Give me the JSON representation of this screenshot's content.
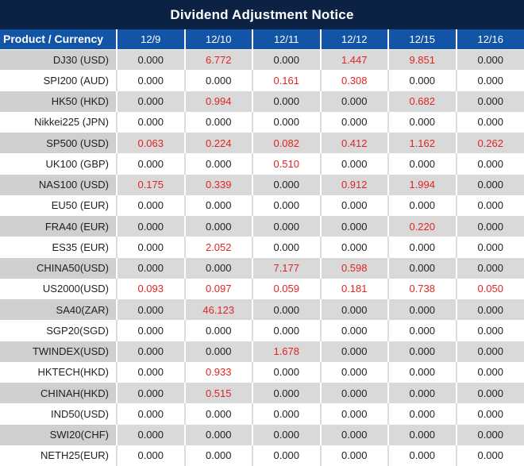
{
  "title": "Dividend Adjustment Notice",
  "colors": {
    "title_bar_bg": "#0c2244",
    "title_text": "#ffffff",
    "header_bg": "#1254a6",
    "header_text": "#ffffff",
    "row_gray": "#d9d9d9",
    "product_gray": "#d0cece",
    "row_white": "#ffffff",
    "text": "#1f1f1f",
    "highlight_red": "#e02424",
    "separator_on_gray": "#ffffff",
    "separator_on_white": "#dcdcdc"
  },
  "table": {
    "product_header": "Product / Currency",
    "date_columns": [
      "12/9",
      "12/10",
      "12/11",
      "12/12",
      "12/15",
      "12/16"
    ],
    "zero_value": "0.000",
    "rows": [
      {
        "product": "DJ30 (USD)",
        "values": [
          "0.000",
          "6.772",
          "0.000",
          "1.447",
          "9.851",
          "0.000"
        ]
      },
      {
        "product": "SPI200 (AUD)",
        "values": [
          "0.000",
          "0.000",
          "0.161",
          "0.308",
          "0.000",
          "0.000"
        ]
      },
      {
        "product": "HK50 (HKD)",
        "values": [
          "0.000",
          "0.994",
          "0.000",
          "0.000",
          "0.682",
          "0.000"
        ]
      },
      {
        "product": "Nikkei225 (JPN)",
        "values": [
          "0.000",
          "0.000",
          "0.000",
          "0.000",
          "0.000",
          "0.000"
        ]
      },
      {
        "product": "SP500 (USD)",
        "values": [
          "0.063",
          "0.224",
          "0.082",
          "0.412",
          "1.162",
          "0.262"
        ]
      },
      {
        "product": "UK100 (GBP)",
        "values": [
          "0.000",
          "0.000",
          "0.510",
          "0.000",
          "0.000",
          "0.000"
        ]
      },
      {
        "product": "NAS100 (USD)",
        "values": [
          "0.175",
          "0.339",
          "0.000",
          "0.912",
          "1.994",
          "0.000"
        ]
      },
      {
        "product": "EU50 (EUR)",
        "values": [
          "0.000",
          "0.000",
          "0.000",
          "0.000",
          "0.000",
          "0.000"
        ]
      },
      {
        "product": "FRA40 (EUR)",
        "values": [
          "0.000",
          "0.000",
          "0.000",
          "0.000",
          "0.220",
          "0.000"
        ]
      },
      {
        "product": "ES35 (EUR)",
        "values": [
          "0.000",
          "2.052",
          "0.000",
          "0.000",
          "0.000",
          "0.000"
        ]
      },
      {
        "product": "CHINA50(USD)",
        "values": [
          "0.000",
          "0.000",
          "7.177",
          "0.598",
          "0.000",
          "0.000"
        ]
      },
      {
        "product": "US2000(USD)",
        "values": [
          "0.093",
          "0.097",
          "0.059",
          "0.181",
          "0.738",
          "0.050"
        ]
      },
      {
        "product": "SA40(ZAR)",
        "values": [
          "0.000",
          "46.123",
          "0.000",
          "0.000",
          "0.000",
          "0.000"
        ]
      },
      {
        "product": "SGP20(SGD)",
        "values": [
          "0.000",
          "0.000",
          "0.000",
          "0.000",
          "0.000",
          "0.000"
        ]
      },
      {
        "product": "TWINDEX(USD)",
        "values": [
          "0.000",
          "0.000",
          "1.678",
          "0.000",
          "0.000",
          "0.000"
        ]
      },
      {
        "product": "HKTECH(HKD)",
        "values": [
          "0.000",
          "0.933",
          "0.000",
          "0.000",
          "0.000",
          "0.000"
        ]
      },
      {
        "product": "CHINAH(HKD)",
        "values": [
          "0.000",
          "0.515",
          "0.000",
          "0.000",
          "0.000",
          "0.000"
        ]
      },
      {
        "product": "IND50(USD)",
        "values": [
          "0.000",
          "0.000",
          "0.000",
          "0.000",
          "0.000",
          "0.000"
        ]
      },
      {
        "product": "SWI20(CHF)",
        "values": [
          "0.000",
          "0.000",
          "0.000",
          "0.000",
          "0.000",
          "0.000"
        ]
      },
      {
        "product": "NETH25(EUR)",
        "values": [
          "0.000",
          "0.000",
          "0.000",
          "0.000",
          "0.000",
          "0.000"
        ]
      }
    ]
  }
}
